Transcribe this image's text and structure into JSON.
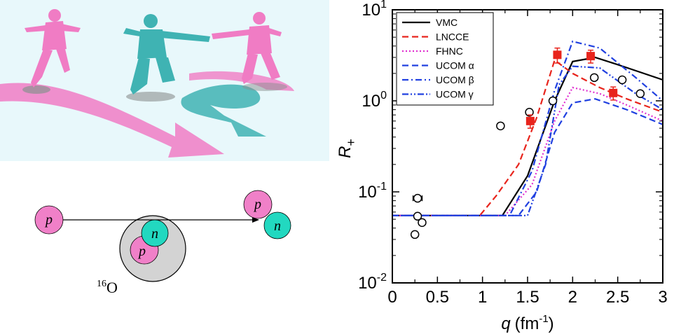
{
  "illustration": {
    "colors": {
      "background": "#e8f8fb",
      "pink": "#f07cc4",
      "teal": "#3fb3b3",
      "shadow": "#9aa0a0"
    }
  },
  "diagram": {
    "proton_label": "p",
    "neutron_label": "n",
    "nucleus_superscript": "16",
    "nucleus_symbol": "O",
    "colors": {
      "proton": "#f080c8",
      "neutron": "#22d8c0",
      "nucleus": "#d3d3d3"
    }
  },
  "chart_data": {
    "type": "line",
    "xlabel_var": "q",
    "xlabel_unit_base": "(fm",
    "xlabel_unit_exp": "-1",
    "xlabel_unit_close": ")",
    "ylabel_base": "R",
    "ylabel_sub": "+",
    "xlim": [
      0,
      3
    ],
    "ylim": [
      0.01,
      10
    ],
    "yscale": "log",
    "x_ticks": [
      0,
      0.5,
      1,
      1.5,
      2,
      2.5,
      3
    ],
    "x_tick_labels": [
      "0",
      "0.5",
      "1",
      "1.5",
      "2",
      "2.5",
      "3"
    ],
    "y_ticks": [
      {
        "value": 0.01,
        "base": "10",
        "exp": "-2"
      },
      {
        "value": 0.1,
        "base": "10",
        "exp": "-1"
      },
      {
        "value": 1,
        "base": "10",
        "exp": "0"
      },
      {
        "value": 10,
        "base": "10",
        "exp": "1"
      }
    ],
    "legend_position": "top-left",
    "series": [
      {
        "name": "VMC",
        "color": "#000000",
        "dash": "solid",
        "x": [
          0,
          1.22,
          1.5,
          1.8,
          2.0,
          2.25,
          2.5,
          3.0
        ],
        "y": [
          0.055,
          0.055,
          0.15,
          1.0,
          2.7,
          3.0,
          2.5,
          1.7
        ]
      },
      {
        "name": "LNCCE",
        "color": "#e8241c",
        "dash": "dashed",
        "x": [
          0,
          0.97,
          1.15,
          1.4,
          1.6,
          1.8,
          2.0,
          2.3,
          2.6,
          3.0
        ],
        "y": [
          0.055,
          0.055,
          0.09,
          0.2,
          0.65,
          2.8,
          2.0,
          1.4,
          1.05,
          0.75
        ]
      },
      {
        "name": "FHNC",
        "color": "#e030d0",
        "dash": "dotted",
        "x": [
          0,
          1.25,
          1.55,
          1.8,
          2.0,
          2.3,
          2.6,
          3.0
        ],
        "y": [
          0.055,
          0.055,
          0.12,
          0.6,
          1.4,
          1.2,
          0.9,
          0.6
        ]
      },
      {
        "name": "UCOM α",
        "color": "#2040e0",
        "dash": "dashed",
        "x": [
          0,
          1.4,
          1.6,
          1.8,
          2.0,
          2.25,
          2.6,
          3.0
        ],
        "y": [
          0.055,
          0.055,
          0.1,
          0.45,
          0.95,
          1.05,
          0.8,
          0.55
        ]
      },
      {
        "name": "UCOM β",
        "color": "#2040e0",
        "dash": "dashdot",
        "x": [
          0,
          1.3,
          1.55,
          1.8,
          2.0,
          2.3,
          2.7,
          3.0
        ],
        "y": [
          0.055,
          0.055,
          0.17,
          1.3,
          4.5,
          3.8,
          1.8,
          1.0
        ]
      },
      {
        "name": "UCOM γ",
        "color": "#2040e0",
        "dash": "dashdotdot",
        "x": [
          0,
          1.5,
          1.7,
          1.85,
          2.0,
          2.3,
          2.7,
          3.0
        ],
        "y": [
          0.055,
          0.055,
          0.2,
          1.5,
          2.4,
          2.3,
          1.2,
          0.8
        ]
      }
    ],
    "data_points": {
      "open_circles": {
        "x": [
          0.25,
          0.28,
          0.28,
          0.33,
          1.2,
          1.52,
          1.78,
          2.24,
          2.55,
          2.75
        ],
        "y": [
          0.034,
          0.085,
          0.054,
          0.046,
          0.53,
          0.75,
          1.0,
          1.8,
          1.7,
          1.2
        ],
        "x_err": [
          0,
          0.05,
          0,
          0,
          0,
          0,
          0,
          0,
          0,
          0
        ]
      },
      "red_squares": {
        "color": "#e8241c",
        "x": [
          1.53,
          1.83,
          2.2,
          2.45
        ],
        "y": [
          0.6,
          3.2,
          3.1,
          1.22
        ],
        "y_err": [
          0.1,
          0.6,
          0.5,
          0.2
        ]
      }
    }
  }
}
